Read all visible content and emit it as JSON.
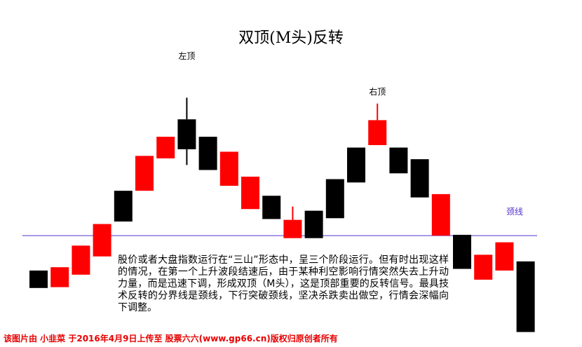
{
  "chart_data": {
    "type": "candlestick",
    "title": "双顶(M头)反转",
    "candles": [
      {
        "open": 54,
        "close": 33,
        "high": 54,
        "low": 33,
        "color": "black"
      },
      {
        "open": 34,
        "close": 58,
        "high": 58,
        "low": 34,
        "color": "red"
      },
      {
        "open": 49,
        "close": 84,
        "high": 84,
        "low": 49,
        "color": "red"
      },
      {
        "open": 71,
        "close": 110,
        "high": 110,
        "low": 71,
        "color": "red"
      },
      {
        "open": 113,
        "close": 150,
        "high": 150,
        "low": 113,
        "color": "black"
      },
      {
        "open": 150,
        "close": 192,
        "high": 192,
        "low": 150,
        "color": "red"
      },
      {
        "open": 189,
        "close": 215,
        "high": 215,
        "low": 189,
        "color": "red"
      },
      {
        "open": 200,
        "close": 236,
        "high": 262,
        "low": 181,
        "color": "black"
      },
      {
        "open": 215,
        "close": 175,
        "high": 215,
        "low": 175,
        "color": "black"
      },
      {
        "open": 197,
        "close": 156,
        "high": 197,
        "low": 156,
        "color": "red"
      },
      {
        "open": 167,
        "close": 128,
        "high": 167,
        "low": 128,
        "color": "red"
      },
      {
        "open": 144,
        "close": 116,
        "high": 144,
        "low": 116,
        "color": "black"
      },
      {
        "open": 93,
        "close": 115,
        "high": 131,
        "low": 93,
        "color": "red"
      },
      {
        "open": 126,
        "close": 93,
        "high": 126,
        "low": 93,
        "color": "black"
      },
      {
        "open": 117,
        "close": 164,
        "high": 164,
        "low": 117,
        "color": "black"
      },
      {
        "open": 160,
        "close": 202,
        "high": 202,
        "low": 160,
        "color": "black"
      },
      {
        "open": 205,
        "close": 235,
        "high": 255,
        "low": 205,
        "color": "red"
      },
      {
        "open": 202,
        "close": 171,
        "high": 202,
        "low": 171,
        "color": "black"
      },
      {
        "open": 188,
        "close": 142,
        "high": 188,
        "low": 142,
        "color": "black"
      },
      {
        "open": 146,
        "close": 96,
        "high": 146,
        "low": 96,
        "color": "red"
      },
      {
        "open": 97,
        "close": 56,
        "high": 97,
        "low": 56,
        "color": "black"
      },
      {
        "open": 43,
        "close": 73,
        "high": 73,
        "low": 43,
        "color": "red"
      },
      {
        "open": 54,
        "close": 88,
        "high": 88,
        "low": 54,
        "color": "red"
      },
      {
        "open": 65,
        "close": -20,
        "high": 65,
        "low": -20,
        "color": "black"
      }
    ],
    "neckline": 96,
    "ylim": [
      -22,
      302
    ],
    "annotations": {
      "left_top": "左顶",
      "right_top": "右顶",
      "neckline": "颈线"
    },
    "colors": {
      "up": "#ff0000",
      "down": "#000000",
      "neckline": "#5533cc"
    }
  },
  "description": "股价或者大盘指数运行在“三山”形态中，呈三个阶段运行。但有时出现这样的情况，在第一个上升波段结速后，由于某种利空影响行情突然失去上升动力量，而是迅速下调，形成双顶（M头），这是顶部重要的反转信号。最具技术反转的分界线是颈线，下行突破颈线，坚决杀跌卖出做空，行情会深幅向下调整。",
  "footer": "该图片由 小韭菜 于2016年4月9日上传至 股票六六(www.gp66.cn)版权归原创者所有"
}
